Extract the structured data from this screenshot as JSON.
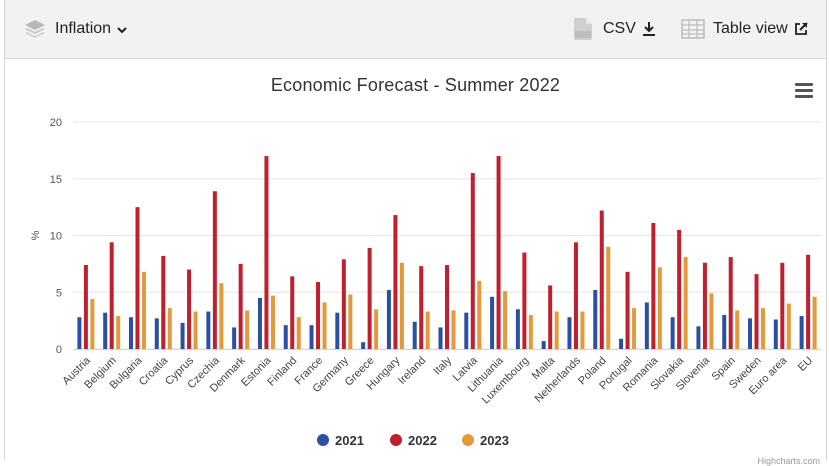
{
  "toolbar": {
    "indicator_label": "Inflation",
    "csv_label": "CSV",
    "table_view_label": "Table view"
  },
  "chart_data": {
    "type": "bar",
    "title": "Economic Forecast - Summer 2022",
    "ylabel": "%",
    "ylim": [
      0,
      20
    ],
    "yticks": [
      0,
      5,
      10,
      15,
      20
    ],
    "grid": true,
    "legend_position": "bottom",
    "categories": [
      "Austria",
      "Belgium",
      "Bulgaria",
      "Croatia",
      "Cyprus",
      "Czechia",
      "Denmark",
      "Estonia",
      "Finland",
      "France",
      "Germany",
      "Greece",
      "Hungary",
      "Ireland",
      "Italy",
      "Latvia",
      "Lithuania",
      "Luxembourg",
      "Malta",
      "Netherlands",
      "Poland",
      "Portugal",
      "Romania",
      "Slovakia",
      "Slovenia",
      "Spain",
      "Sweden",
      "Euro area",
      "EU"
    ],
    "series": [
      {
        "name": "2021",
        "color": "#2b4fa3",
        "values": [
          2.8,
          3.2,
          2.8,
          2.7,
          2.3,
          3.3,
          1.9,
          4.5,
          2.1,
          2.1,
          3.2,
          0.6,
          5.2,
          2.4,
          1.9,
          3.2,
          4.6,
          3.5,
          0.7,
          2.8,
          5.2,
          0.9,
          4.1,
          2.8,
          2.0,
          3.0,
          2.7,
          2.6,
          2.9
        ]
      },
      {
        "name": "2022",
        "color": "#c0202e",
        "values": [
          7.4,
          9.4,
          12.5,
          8.2,
          7.0,
          13.9,
          7.5,
          17.0,
          6.4,
          5.9,
          7.9,
          8.9,
          11.8,
          7.3,
          7.4,
          15.5,
          17.0,
          8.5,
          5.6,
          9.4,
          12.2,
          6.8,
          11.1,
          10.5,
          7.6,
          8.1,
          6.6,
          7.6,
          8.3
        ]
      },
      {
        "name": "2023",
        "color": "#e39a3a",
        "values": [
          4.4,
          2.9,
          6.8,
          3.6,
          3.3,
          5.8,
          3.4,
          4.7,
          2.8,
          4.1,
          4.8,
          3.5,
          7.6,
          3.3,
          3.4,
          6.0,
          5.1,
          3.0,
          3.3,
          3.3,
          9.0,
          3.6,
          7.2,
          8.1,
          4.9,
          3.4,
          3.6,
          4.0,
          4.6
        ]
      }
    ]
  },
  "credit": "Highcharts.com"
}
